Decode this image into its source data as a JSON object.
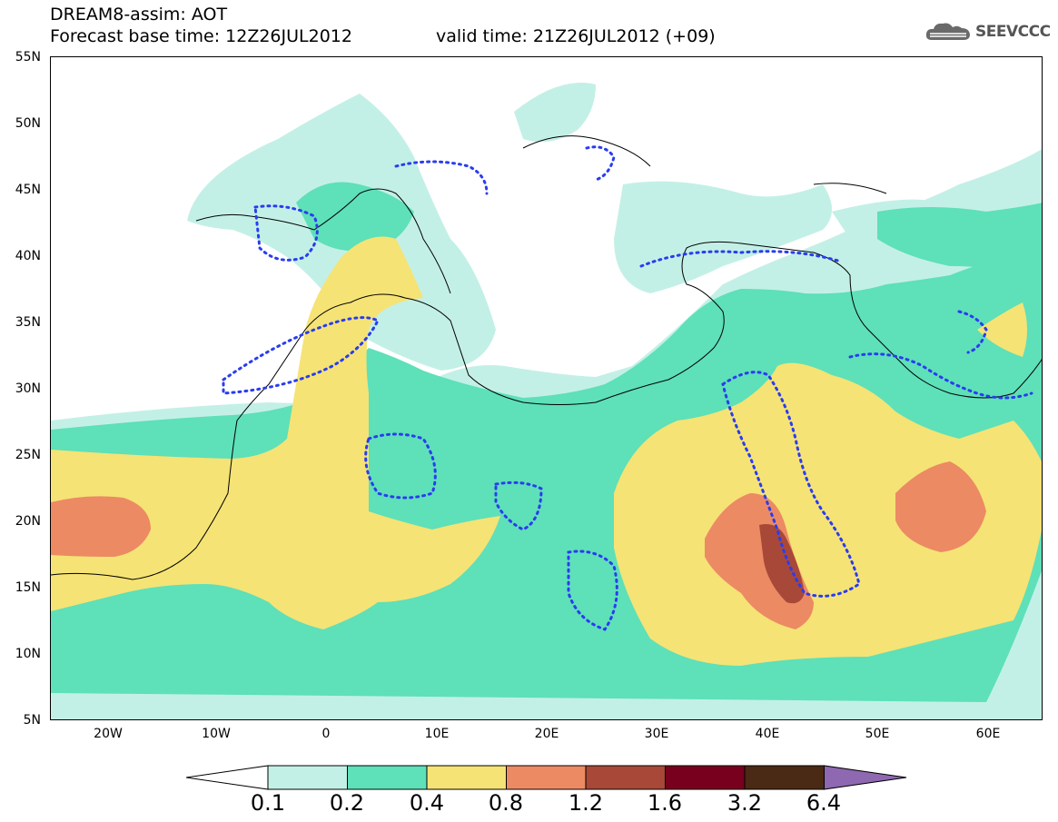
{
  "header": {
    "title": "DREAM8-assim: AOT",
    "base_time": "Forecast base time: 12Z26JUL2012",
    "valid_time": "valid time: 21Z26JUL2012 (+09)",
    "logo_text": "SEEVCCC"
  },
  "map": {
    "lat_labels": [
      "55N",
      "50N",
      "45N",
      "40N",
      "35N",
      "30N",
      "25N",
      "20N",
      "15N",
      "10N",
      "5N"
    ],
    "lon_labels": [
      "20W",
      "10W",
      "0",
      "10E",
      "20E",
      "30E",
      "40E",
      "50E",
      "60E"
    ],
    "colors": {
      "c01": "#c3f0e6",
      "c02": "#5ee0b9",
      "c04": "#f5e375",
      "c08": "#ec8a64",
      "c12": "#a84838",
      "c16": "#78001e",
      "c32": "#4a2a14",
      "c64": "#8e68b0",
      "dots": "#2a3cf0",
      "coast": "#000000"
    }
  },
  "colorbar": {
    "labels": [
      "0.1",
      "0.2",
      "0.4",
      "0.8",
      "1.2",
      "1.6",
      "3.2",
      "6.4"
    ]
  }
}
